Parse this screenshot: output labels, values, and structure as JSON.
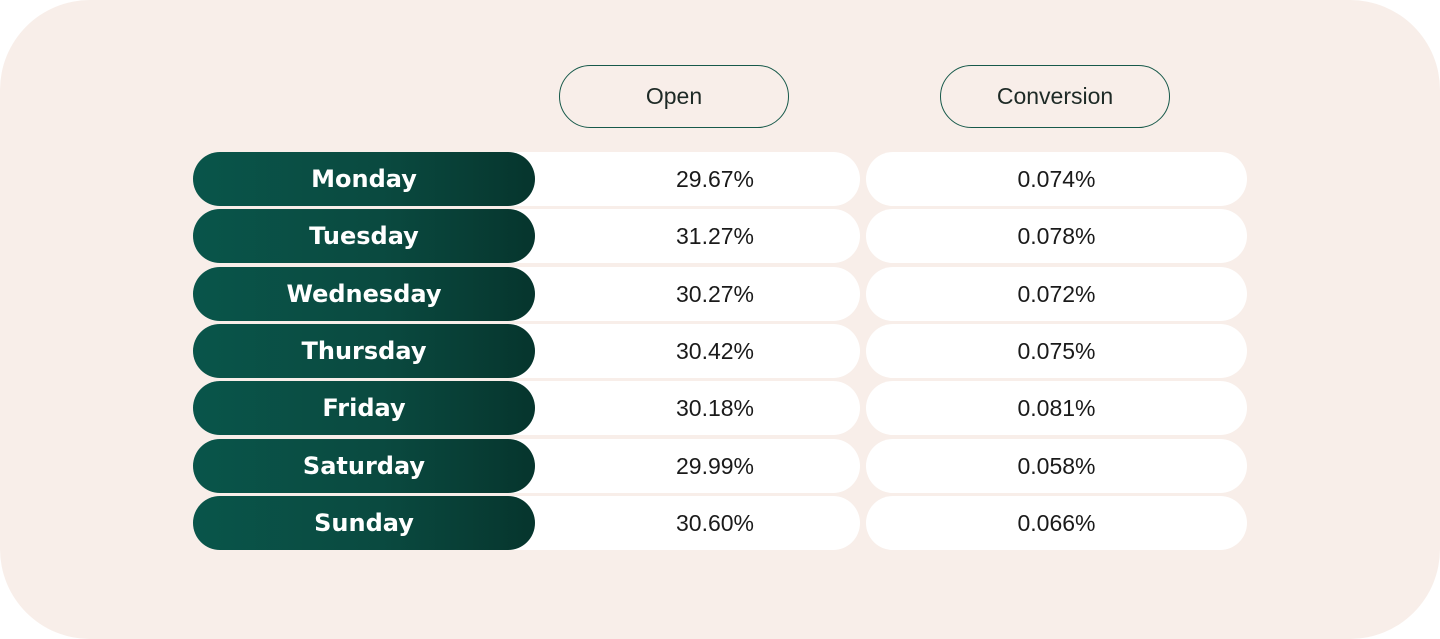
{
  "chart_data": {
    "type": "table",
    "columns": [
      "Open",
      "Conversion"
    ],
    "rows": [
      {
        "day": "Monday",
        "open": "29.67%",
        "conversion": "0.074%"
      },
      {
        "day": "Tuesday",
        "open": "31.27%",
        "conversion": "0.078%"
      },
      {
        "day": "Wednesday",
        "open": "30.27%",
        "conversion": "0.072%"
      },
      {
        "day": "Thursday",
        "open": "30.42%",
        "conversion": "0.075%"
      },
      {
        "day": "Friday",
        "open": "30.18%",
        "conversion": "0.081%"
      },
      {
        "day": "Saturday",
        "open": "29.99%",
        "conversion": "0.058%"
      },
      {
        "day": "Sunday",
        "open": "30.60%",
        "conversion": "0.066%"
      }
    ]
  },
  "colors": {
    "background": "#f8eee9",
    "day_pill": "#0a4a40",
    "header_border": "#17594a",
    "cell": "#ffffff"
  }
}
